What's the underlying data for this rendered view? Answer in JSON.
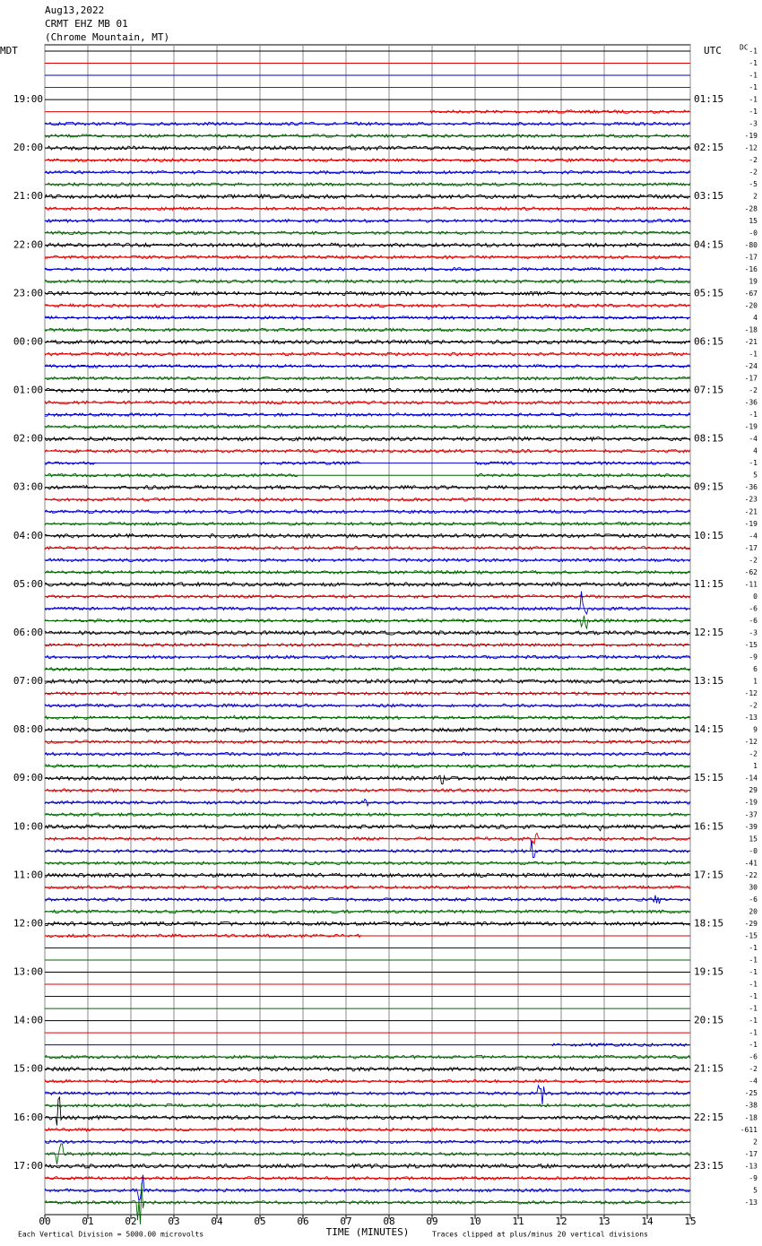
{
  "header": {
    "date": "Aug13,2022",
    "station": "CRMT EHZ MB 01",
    "location": "(Chrome Mountain, MT)"
  },
  "left_axis_title": "MDT",
  "right_axis_title": "UTC",
  "dc_title": "DC",
  "left_labels": [
    "19:00",
    "20:00",
    "21:00",
    "22:00",
    "23:00",
    "00:00",
    "01:00",
    "02:00",
    "03:00",
    "04:00",
    "05:00",
    "06:00",
    "07:00",
    "08:00",
    "09:00",
    "10:00",
    "11:00",
    "12:00",
    "13:00",
    "14:00",
    "15:00",
    "16:00",
    "17:00"
  ],
  "right_labels": [
    "01:15",
    "02:15",
    "03:15",
    "04:15",
    "05:15",
    "06:15",
    "07:15",
    "08:15",
    "09:15",
    "10:15",
    "11:15",
    "12:15",
    "13:15",
    "14:15",
    "15:15",
    "16:15",
    "17:15",
    "18:15",
    "19:15",
    "20:15",
    "21:15",
    "22:15",
    "23:15"
  ],
  "dc_values": [
    "-1",
    "-1",
    "-1",
    "-1",
    "-1",
    "-1",
    "-3",
    "-19",
    "-12",
    "-2",
    "-2",
    "-5",
    "2",
    "-28",
    "15",
    "-0",
    "-80",
    "-17",
    "-16",
    "19",
    "-67",
    "-20",
    "4",
    "-18",
    "-21",
    "-1",
    "-24",
    "-17",
    "-2",
    "-36",
    "-1",
    "-19",
    "-4",
    "4",
    "-1",
    "5",
    "-36",
    "-23",
    "-21",
    "-19",
    "-4",
    "-17",
    "-2",
    "-62",
    "-11",
    "0",
    "-6",
    "-6",
    "-3",
    "-15",
    "-9",
    "6",
    "1",
    "-12",
    "-2",
    "-13",
    "9",
    "-12",
    "-2",
    "1",
    "-14",
    "29",
    "-19",
    "-37",
    "-39",
    "15",
    "-0",
    "-41",
    "-22",
    "30",
    "-6",
    "20",
    "-29",
    "-15",
    "-1",
    "-1",
    "-1",
    "-1",
    "-1",
    "-1",
    "-1",
    "-1",
    "-1",
    "-6",
    "-2",
    "-4",
    "-25",
    "-38",
    "-18",
    "-611",
    "2",
    "-17",
    "-13",
    "-9",
    "5",
    "-13"
  ],
  "x_ticks": [
    "00",
    "01",
    "02",
    "03",
    "04",
    "05",
    "06",
    "07",
    "08",
    "09",
    "10",
    "11",
    "12",
    "13",
    "14",
    "15"
  ],
  "x_axis_title": "TIME (MINUTES)",
  "footer_left": "Each Vertical Division = 5000.00 microvolts",
  "footer_right": "Traces clipped at plus/minus 20 vertical divisions"
}
